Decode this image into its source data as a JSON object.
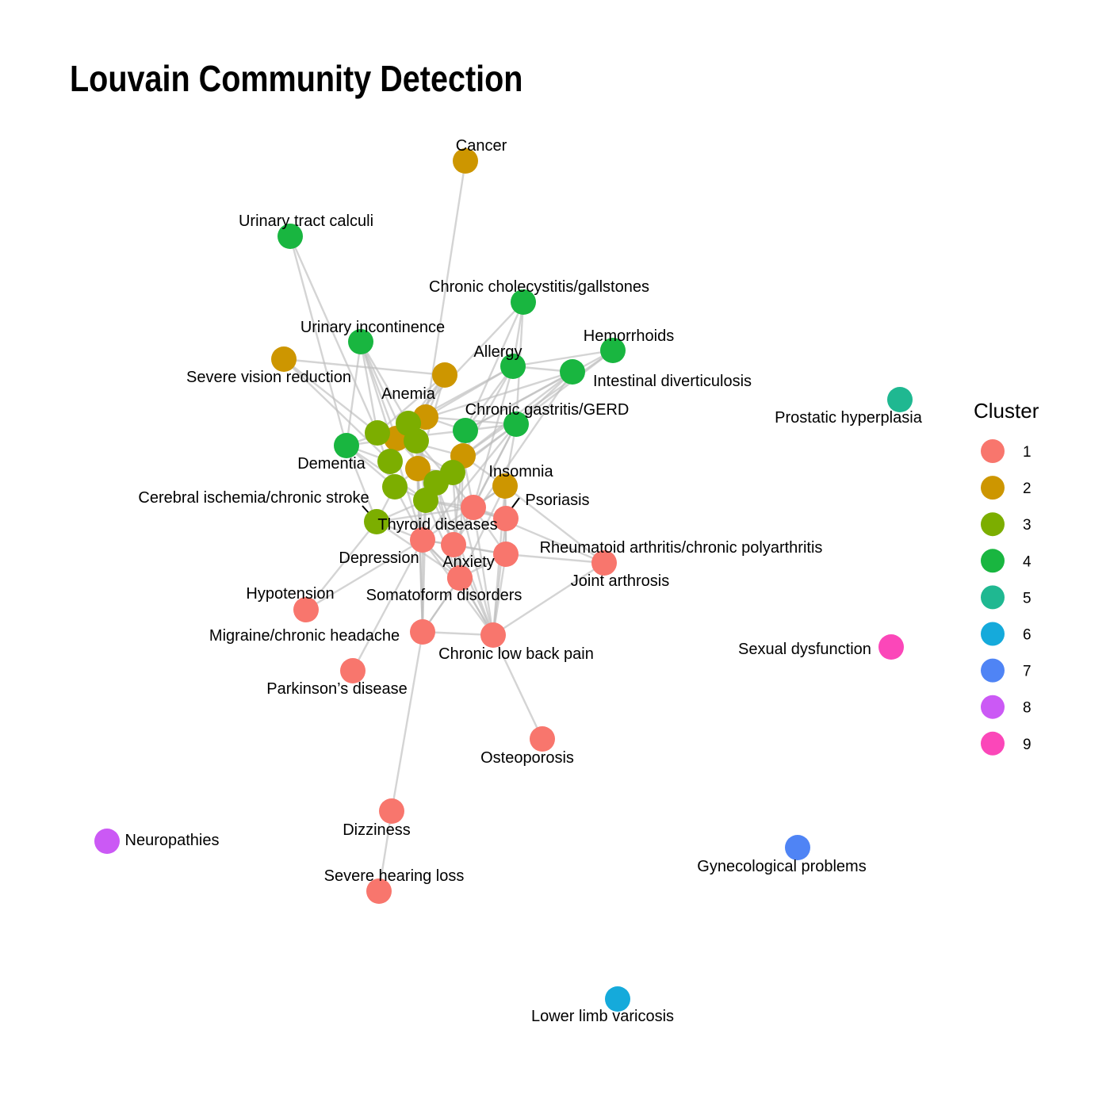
{
  "title": "Louvain Community Detection",
  "legend": {
    "title": "Cluster",
    "items": [
      {
        "label": "1",
        "color": "#F8766D"
      },
      {
        "label": "2",
        "color": "#CD9600"
      },
      {
        "label": "3",
        "color": "#7CAE00"
      },
      {
        "label": "4",
        "color": "#00BE67"
      },
      {
        "label": "5",
        "color": "#00BFC4"
      },
      {
        "label": "6",
        "color": "#00A9FF"
      },
      {
        "label": "7",
        "color": "#C77CFF"
      },
      {
        "label": "8",
        "color": "#FF61CC"
      },
      {
        "label": "9",
        "color": "#FF61C3"
      }
    ]
  },
  "nodes": [
    {
      "id": "cancer",
      "label": "Cancer",
      "cluster": 2
    },
    {
      "id": "urinary_calculi",
      "label": "Urinary tract calculi",
      "cluster": 4
    },
    {
      "id": "cholecystitis",
      "label": "Chronic cholecystitis/gallstones",
      "cluster": 4
    },
    {
      "id": "urinary_incontinence",
      "label": "Urinary incontinence",
      "cluster": 4
    },
    {
      "id": "hemorrhoids",
      "label": "Hemorrhoids",
      "cluster": 4
    },
    {
      "id": "allergy",
      "label": "Allergy",
      "cluster": 4
    },
    {
      "id": "vision",
      "label": "Severe vision reduction",
      "cluster": 2
    },
    {
      "id": "diverticulosis",
      "label": "Intestinal diverticulosis",
      "cluster": 4
    },
    {
      "id": "prostatic",
      "label": "Prostatic hyperplasia",
      "cluster": 5
    },
    {
      "id": "anemia",
      "label": "Anemia",
      "cluster": 2
    },
    {
      "id": "gerd",
      "label": "Chronic gastritis/GERD",
      "cluster": 4
    },
    {
      "id": "dementia",
      "label": "Dementia",
      "cluster": 4
    },
    {
      "id": "insomnia",
      "label": "Insomnia",
      "cluster": 2
    },
    {
      "id": "cerebral",
      "label": "Cerebral ischemia/chronic stroke",
      "cluster": 3
    },
    {
      "id": "psoriasis",
      "label": "Psoriasis",
      "cluster": 1
    },
    {
      "id": "thyroid",
      "label": "Thyroid diseases",
      "cluster": 1
    },
    {
      "id": "rheumatoid",
      "label": "Rheumatoid arthritis/chronic polyarthritis",
      "cluster": 1
    },
    {
      "id": "depression",
      "label": "Depression",
      "cluster": 1
    },
    {
      "id": "anxiety",
      "label": "Anxiety",
      "cluster": 1
    },
    {
      "id": "joint",
      "label": "Joint arthrosis",
      "cluster": 1
    },
    {
      "id": "hypotension",
      "label": "Hypotension",
      "cluster": 1
    },
    {
      "id": "somatoform",
      "label": "Somatoform disorders",
      "cluster": 1
    },
    {
      "id": "migraine",
      "label": "Migraine/chronic headache",
      "cluster": 1
    },
    {
      "id": "backpain",
      "label": "Chronic low back pain",
      "cluster": 1
    },
    {
      "id": "sexual",
      "label": "Sexual dysfunction",
      "cluster": 9
    },
    {
      "id": "parkinson",
      "label": "Parkinson’s disease",
      "cluster": 1
    },
    {
      "id": "osteoporosis",
      "label": "Osteoporosis",
      "cluster": 1
    },
    {
      "id": "dizziness",
      "label": "Dizziness",
      "cluster": 1
    },
    {
      "id": "neuropathies",
      "label": "Neuropathies",
      "cluster": 8
    },
    {
      "id": "gynecological",
      "label": "Gynecological problems",
      "cluster": 7
    },
    {
      "id": "hearing",
      "label": "Severe hearing loss",
      "cluster": 1
    },
    {
      "id": "varicosis",
      "label": "Lower limb varicosis",
      "cluster": 6
    },
    {
      "id": "u2a",
      "label": "",
      "cluster": 2
    },
    {
      "id": "u2b",
      "label": "",
      "cluster": 2
    },
    {
      "id": "u2c",
      "label": "",
      "cluster": 2
    },
    {
      "id": "u2d",
      "label": "",
      "cluster": 2
    },
    {
      "id": "u3a",
      "label": "",
      "cluster": 3
    },
    {
      "id": "u3b",
      "label": "",
      "cluster": 3
    },
    {
      "id": "u3c",
      "label": "",
      "cluster": 3
    },
    {
      "id": "u3d",
      "label": "",
      "cluster": 3
    },
    {
      "id": "u3e",
      "label": "",
      "cluster": 3
    },
    {
      "id": "u3f",
      "label": "",
      "cluster": 3
    },
    {
      "id": "u3g",
      "label": "",
      "cluster": 3
    },
    {
      "id": "u3h",
      "label": "",
      "cluster": 3
    },
    {
      "id": "u4a",
      "label": "",
      "cluster": 4
    },
    {
      "id": "u1a",
      "label": "",
      "cluster": 1
    }
  ],
  "edges": [
    [
      "cancer",
      "anemia"
    ],
    [
      "urinary_calculi",
      "dementia"
    ],
    [
      "urinary_calculi",
      "u3b"
    ],
    [
      "cholecystitis",
      "allergy"
    ],
    [
      "cholecystitis",
      "u4a"
    ],
    [
      "cholecystitis",
      "u3a"
    ],
    [
      "cholecystitis",
      "gerd"
    ],
    [
      "urinary_incontinence",
      "dementia"
    ],
    [
      "urinary_incontinence",
      "u3a"
    ],
    [
      "urinary_incontinence",
      "u3b"
    ],
    [
      "urinary_incontinence",
      "u2c"
    ],
    [
      "urinary_incontinence",
      "thyroid"
    ],
    [
      "urinary_incontinence",
      "depression"
    ],
    [
      "hemorrhoids",
      "allergy"
    ],
    [
      "hemorrhoids",
      "gerd"
    ],
    [
      "hemorrhoids",
      "u4a"
    ],
    [
      "hemorrhoids",
      "u2d"
    ],
    [
      "allergy",
      "diverticulosis"
    ],
    [
      "allergy",
      "u3e"
    ],
    [
      "allergy",
      "u3a"
    ],
    [
      "allergy",
      "u4a"
    ],
    [
      "allergy",
      "anemia"
    ],
    [
      "allergy",
      "u1a"
    ],
    [
      "vision",
      "u2a"
    ],
    [
      "vision",
      "u3c"
    ],
    [
      "vision",
      "u3b"
    ],
    [
      "diverticulosis",
      "gerd"
    ],
    [
      "diverticulosis",
      "u3a"
    ],
    [
      "diverticulosis",
      "u4a"
    ],
    [
      "diverticulosis",
      "u2d"
    ],
    [
      "diverticulosis",
      "thyroid"
    ],
    [
      "anemia",
      "u2a"
    ],
    [
      "anemia",
      "u3a"
    ],
    [
      "anemia",
      "u3b"
    ],
    [
      "anemia",
      "u4a"
    ],
    [
      "anemia",
      "gerd"
    ],
    [
      "anemia",
      "u2b"
    ],
    [
      "anemia",
      "u3c"
    ],
    [
      "anemia",
      "dementia"
    ],
    [
      "gerd",
      "u4a"
    ],
    [
      "gerd",
      "u3e"
    ],
    [
      "gerd",
      "u3f"
    ],
    [
      "gerd",
      "insomnia"
    ],
    [
      "gerd",
      "thyroid"
    ],
    [
      "gerd",
      "u1a"
    ],
    [
      "gerd",
      "depression"
    ],
    [
      "dementia",
      "u3c"
    ],
    [
      "dementia",
      "u2c"
    ],
    [
      "dementia",
      "cerebral"
    ],
    [
      "dementia",
      "u3d"
    ],
    [
      "dementia",
      "u3g"
    ],
    [
      "insomnia",
      "psoriasis"
    ],
    [
      "insomnia",
      "depression"
    ],
    [
      "insomnia",
      "anxiety"
    ],
    [
      "insomnia",
      "joint"
    ],
    [
      "insomnia",
      "backpain"
    ],
    [
      "insomnia",
      "u2d"
    ],
    [
      "insomnia",
      "u1a"
    ],
    [
      "insomnia",
      "rheumatoid"
    ],
    [
      "cerebral",
      "u3d"
    ],
    [
      "cerebral",
      "u3g"
    ],
    [
      "cerebral",
      "depression"
    ],
    [
      "cerebral",
      "somatoform"
    ],
    [
      "cerebral",
      "u1a"
    ],
    [
      "cerebral",
      "hypotension"
    ],
    [
      "psoriasis",
      "rheumatoid"
    ],
    [
      "psoriasis",
      "u1a"
    ],
    [
      "psoriasis",
      "u3g"
    ],
    [
      "psoriasis",
      "backpain"
    ],
    [
      "thyroid",
      "rheumatoid"
    ],
    [
      "thyroid",
      "somatoform"
    ],
    [
      "thyroid",
      "backpain"
    ],
    [
      "thyroid",
      "depression"
    ],
    [
      "thyroid",
      "u3h"
    ],
    [
      "thyroid",
      "u2d"
    ],
    [
      "rheumatoid",
      "joint"
    ],
    [
      "rheumatoid",
      "backpain"
    ],
    [
      "rheumatoid",
      "depression"
    ],
    [
      "rheumatoid",
      "anxiety"
    ],
    [
      "rheumatoid",
      "u1a"
    ],
    [
      "depression",
      "anxiety"
    ],
    [
      "depression",
      "somatoform"
    ],
    [
      "depression",
      "migraine"
    ],
    [
      "depression",
      "parkinson"
    ],
    [
      "depression",
      "hypotension"
    ],
    [
      "depression",
      "backpain"
    ],
    [
      "depression",
      "u3g"
    ],
    [
      "depression",
      "u3d"
    ],
    [
      "depression",
      "u2b"
    ],
    [
      "anxiety",
      "somatoform"
    ],
    [
      "anxiety",
      "backpain"
    ],
    [
      "anxiety",
      "migraine"
    ],
    [
      "anxiety",
      "u3g"
    ],
    [
      "anxiety",
      "u2d"
    ],
    [
      "joint",
      "backpain"
    ],
    [
      "joint",
      "u1a"
    ],
    [
      "somatoform",
      "migraine"
    ],
    [
      "somatoform",
      "backpain"
    ],
    [
      "somatoform",
      "u3e"
    ],
    [
      "somatoform",
      "u3f"
    ],
    [
      "migraine",
      "backpain"
    ],
    [
      "migraine",
      "dizziness"
    ],
    [
      "migraine",
      "u3h"
    ],
    [
      "migraine",
      "u3g"
    ],
    [
      "migraine",
      "u2b"
    ],
    [
      "backpain",
      "osteoporosis"
    ],
    [
      "backpain",
      "u1a"
    ],
    [
      "backpain",
      "u3f"
    ],
    [
      "backpain",
      "u3e"
    ],
    [
      "dizziness",
      "hearing"
    ],
    [
      "u2a",
      "u3a"
    ],
    [
      "u2a",
      "u3b"
    ],
    [
      "u2a",
      "u2b"
    ],
    [
      "u2a",
      "u3c"
    ],
    [
      "u2b",
      "u3d"
    ],
    [
      "u2b",
      "u3e"
    ],
    [
      "u2b",
      "u3f"
    ],
    [
      "u2c",
      "u2d"
    ],
    [
      "u2c",
      "u3e"
    ],
    [
      "u2c",
      "u3f"
    ],
    [
      "u2c",
      "u4a"
    ],
    [
      "u2d",
      "u3e"
    ],
    [
      "u2d",
      "u1a"
    ],
    [
      "u3a",
      "u3b"
    ],
    [
      "u3a",
      "u2c"
    ],
    [
      "u3b",
      "u3d"
    ],
    [
      "u3c",
      "u3d"
    ],
    [
      "u3d",
      "u3g"
    ],
    [
      "u3e",
      "u3f"
    ],
    [
      "u3f",
      "u3g"
    ],
    [
      "u3f",
      "u3h"
    ],
    [
      "u3g",
      "u3h"
    ],
    [
      "u3h",
      "u1a"
    ],
    [
      "u4a",
      "u3e"
    ],
    [
      "u1a",
      "u3g"
    ]
  ]
}
